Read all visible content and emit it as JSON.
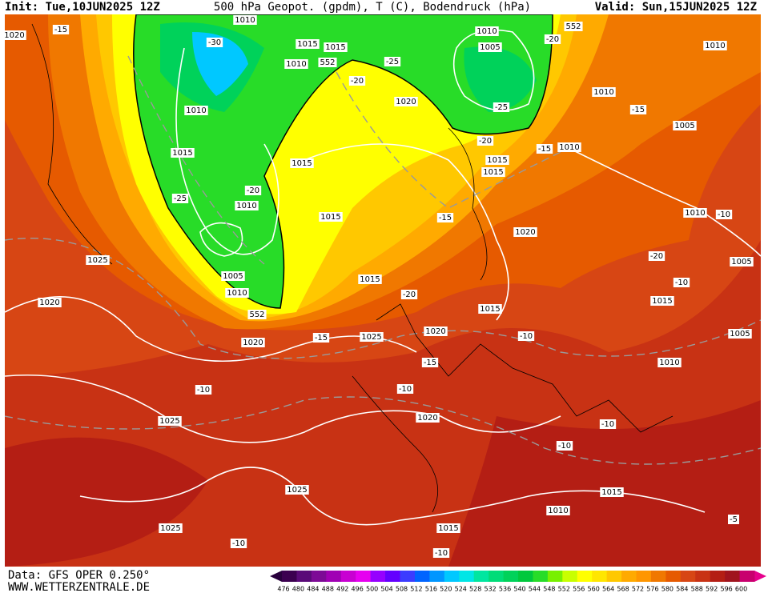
{
  "header": {
    "init": "Init: Tue,10JUN2025 12Z",
    "title": "500 hPa Geopot. (gpdm), T (C), Bodendruck (hPa)",
    "valid": "Valid: Sun,15JUN2025 12Z"
  },
  "map_labels": [
    "1020",
    "-15",
    "1010",
    "-30",
    "1015",
    "1015",
    "1010",
    "552",
    "-25",
    "-20",
    "1010",
    "1005",
    "552",
    "-20",
    "1010",
    "1020",
    "-25",
    "1010",
    "1015",
    "-20",
    "1015",
    "1015",
    "-15",
    "1010",
    "1010",
    "-15",
    "1005",
    "1015",
    "-25",
    "-20",
    "1010",
    "1015",
    "-15",
    "1020",
    "1010",
    "-10",
    "-20",
    "1005",
    "-10",
    "1015",
    "1025",
    "1020",
    "1005",
    "1010",
    "552",
    "1015",
    "-20",
    "1015",
    "1020",
    "-15",
    "1025",
    "1020",
    "-10",
    "1005",
    "1010",
    "-15",
    "-10",
    "-10",
    "1025",
    "1020",
    "-10",
    "-10",
    "1025",
    "1015",
    "1010",
    "1025",
    "1015",
    "-5",
    "-10",
    "-10"
  ],
  "footer": {
    "data": "Data: GFS OPER 0.250°",
    "site": "WWW.WETTERZENTRALE.DE"
  },
  "colorbar": {
    "labels": [
      "476",
      "480",
      "484",
      "488",
      "492",
      "496",
      "500",
      "504",
      "508",
      "512",
      "516",
      "520",
      "524",
      "528",
      "532",
      "536",
      "540",
      "544",
      "548",
      "552",
      "556",
      "560",
      "564",
      "568",
      "572",
      "576",
      "580",
      "584",
      "588",
      "592",
      "596",
      "600"
    ],
    "colors": [
      "#3c0050",
      "#5a0a78",
      "#7d0a96",
      "#a000b4",
      "#c800d2",
      "#e600f0",
      "#9600ff",
      "#6400ff",
      "#3c3cff",
      "#0064ff",
      "#0096ff",
      "#00c8ff",
      "#00e6e6",
      "#00e6a0",
      "#00dc78",
      "#00d25a",
      "#00c83c",
      "#28dc28",
      "#78f000",
      "#c8ff00",
      "#ffff00",
      "#ffe600",
      "#ffc800",
      "#ffaa00",
      "#ff9600",
      "#f07800",
      "#e65a00",
      "#d74614",
      "#c83214",
      "#b41e14",
      "#a0141e",
      "#c8006e"
    ]
  }
}
